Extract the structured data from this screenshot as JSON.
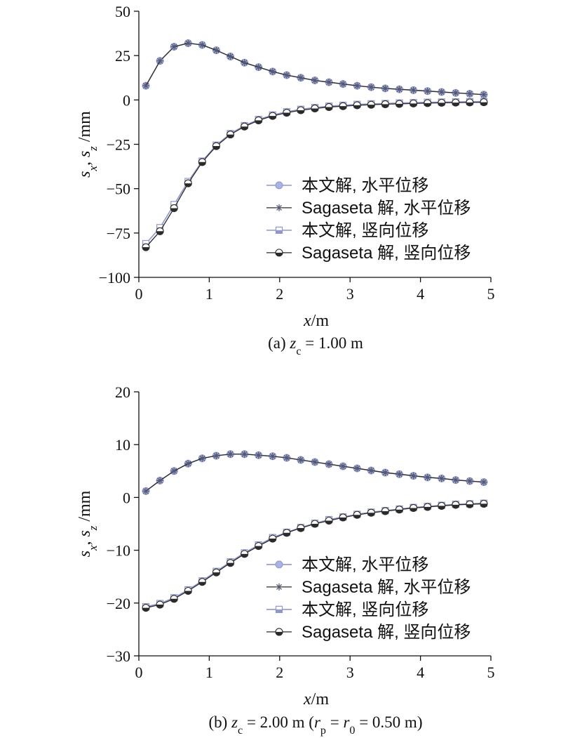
{
  "colors": {
    "model": "#8f97cc",
    "model_fill": "#a9b3e4",
    "sagaseta": "#2b2b2b",
    "axis": "#111111"
  },
  "chart_data": [
    {
      "type": "line",
      "caption": {
        "prefix": "(a) ",
        "sym": "z",
        "sub": "c",
        "rest": " = 1.00 m",
        "extra": []
      },
      "xlabel": {
        "sym": "x",
        "unit": "/m"
      },
      "ylabel": {
        "s1": "s",
        "sub1": "x",
        "sep": ", ",
        "s2": "s",
        "sub2": "z",
        "unit": " /mm"
      },
      "xlim": [
        0,
        5
      ],
      "ylim": [
        -100,
        50
      ],
      "xticks": [
        0,
        1,
        2,
        3,
        4,
        5
      ],
      "yticks": [
        -100,
        -75,
        -50,
        -25,
        0,
        25,
        50
      ],
      "ytick_labels": [
        "−100",
        "−75",
        "−50",
        "−25",
        "0",
        "25",
        "50"
      ],
      "x": [
        0.1,
        0.3,
        0.5,
        0.7,
        0.9,
        1.1,
        1.3,
        1.5,
        1.7,
        1.9,
        2.1,
        2.3,
        2.5,
        2.7,
        2.9,
        3.1,
        3.3,
        3.5,
        3.7,
        3.9,
        4.1,
        4.3,
        4.5,
        4.7,
        4.9
      ],
      "legend_position": "lower-right",
      "series": [
        {
          "name": "本文解, 水平位移",
          "marker": "circle-filled",
          "values": [
            8,
            22,
            30,
            32,
            31,
            28,
            24.5,
            21,
            18.5,
            16,
            14,
            12.5,
            11,
            10,
            9,
            8,
            7.2,
            6.5,
            6,
            5.5,
            5,
            4.5,
            4,
            3.5,
            3
          ]
        },
        {
          "name": "Sagaseta 解, 水平位移",
          "marker": "asterisk",
          "values": [
            8,
            22,
            30,
            32,
            31,
            28,
            24.5,
            21,
            18.5,
            16,
            14,
            12.5,
            11,
            10,
            9,
            8,
            7.2,
            6.5,
            6,
            5.5,
            5,
            4.5,
            4,
            3.5,
            3
          ]
        },
        {
          "name": "本文解, 竖向位移",
          "marker": "square-half",
          "values": [
            -81,
            -72,
            -59,
            -46,
            -34.5,
            -25.5,
            -19,
            -14.5,
            -11,
            -8.5,
            -6.7,
            -5.3,
            -4.3,
            -3.5,
            -3,
            -2.5,
            -2.2,
            -2,
            -1.7,
            -1.5,
            -1.3,
            -1.2,
            -1.1,
            -1,
            -0.9
          ]
        },
        {
          "name": "Sagaseta 解, 竖向位移",
          "marker": "circle-half",
          "values": [
            -83,
            -74,
            -61,
            -47,
            -35,
            -26,
            -19.5,
            -15,
            -11.5,
            -9,
            -7.2,
            -5.8,
            -4.8,
            -4,
            -3.5,
            -3,
            -2.7,
            -2.4,
            -2.2,
            -2,
            -1.8,
            -1.6,
            -1.5,
            -1.4,
            -1.3
          ]
        }
      ]
    },
    {
      "type": "line",
      "caption": {
        "prefix": "(b) ",
        "sym": "z",
        "sub": "c",
        "rest": " = 2.00 m (",
        "extra": [
          {
            "sym": "r",
            "sub": "p",
            "rest": " = "
          },
          {
            "sym": "r",
            "sub": "0",
            "rest": " = 0.50 m)"
          }
        ]
      },
      "xlabel": {
        "sym": "x",
        "unit": "/m"
      },
      "ylabel": {
        "s1": "s",
        "sub1": "x",
        "sep": ", ",
        "s2": "s",
        "sub2": "z",
        "unit": " /mm"
      },
      "xlim": [
        0,
        5
      ],
      "ylim": [
        -30,
        20
      ],
      "xticks": [
        0,
        1,
        2,
        3,
        4,
        5
      ],
      "yticks": [
        -30,
        -20,
        -10,
        0,
        10,
        20
      ],
      "ytick_labels": [
        "−30",
        "−20",
        "−10",
        "0",
        "10",
        "20"
      ],
      "x": [
        0.1,
        0.3,
        0.5,
        0.7,
        0.9,
        1.1,
        1.3,
        1.5,
        1.7,
        1.9,
        2.1,
        2.3,
        2.5,
        2.7,
        2.9,
        3.1,
        3.3,
        3.5,
        3.7,
        3.9,
        4.1,
        4.3,
        4.5,
        4.7,
        4.9
      ],
      "legend_position": "lower-right",
      "series": [
        {
          "name": "本文解, 水平位移",
          "marker": "circle-filled",
          "values": [
            1.2,
            3.2,
            5,
            6.4,
            7.4,
            7.9,
            8.2,
            8.2,
            8,
            7.8,
            7.5,
            7.1,
            6.7,
            6.3,
            5.9,
            5.5,
            5.1,
            4.7,
            4.4,
            4.1,
            3.8,
            3.6,
            3.3,
            3.1,
            2.9
          ]
        },
        {
          "name": "Sagaseta 解, 水平位移",
          "marker": "asterisk",
          "values": [
            1.2,
            3.2,
            5,
            6.4,
            7.4,
            7.9,
            8.2,
            8.2,
            8,
            7.8,
            7.5,
            7.1,
            6.7,
            6.3,
            5.9,
            5.5,
            5.1,
            4.7,
            4.4,
            4.1,
            3.8,
            3.6,
            3.3,
            3.1,
            2.9
          ]
        },
        {
          "name": "本文解, 竖向位移",
          "marker": "square-half",
          "values": [
            -20.7,
            -20.1,
            -19,
            -17.5,
            -15.8,
            -14,
            -12.2,
            -10.5,
            -9,
            -7.6,
            -6.6,
            -5.7,
            -4.9,
            -4.2,
            -3.7,
            -3.2,
            -2.8,
            -2.5,
            -2.2,
            -1.9,
            -1.7,
            -1.5,
            -1.3,
            -1.2,
            -1.1
          ]
        },
        {
          "name": "Sagaseta 解, 竖向位移",
          "marker": "circle-half",
          "values": [
            -20.9,
            -20.3,
            -19.2,
            -17.7,
            -16,
            -14.2,
            -12.4,
            -10.7,
            -9.2,
            -7.8,
            -6.7,
            -5.8,
            -5,
            -4.4,
            -3.8,
            -3.3,
            -2.9,
            -2.6,
            -2.3,
            -2,
            -1.8,
            -1.6,
            -1.4,
            -1.3,
            -1.2
          ]
        }
      ]
    }
  ]
}
